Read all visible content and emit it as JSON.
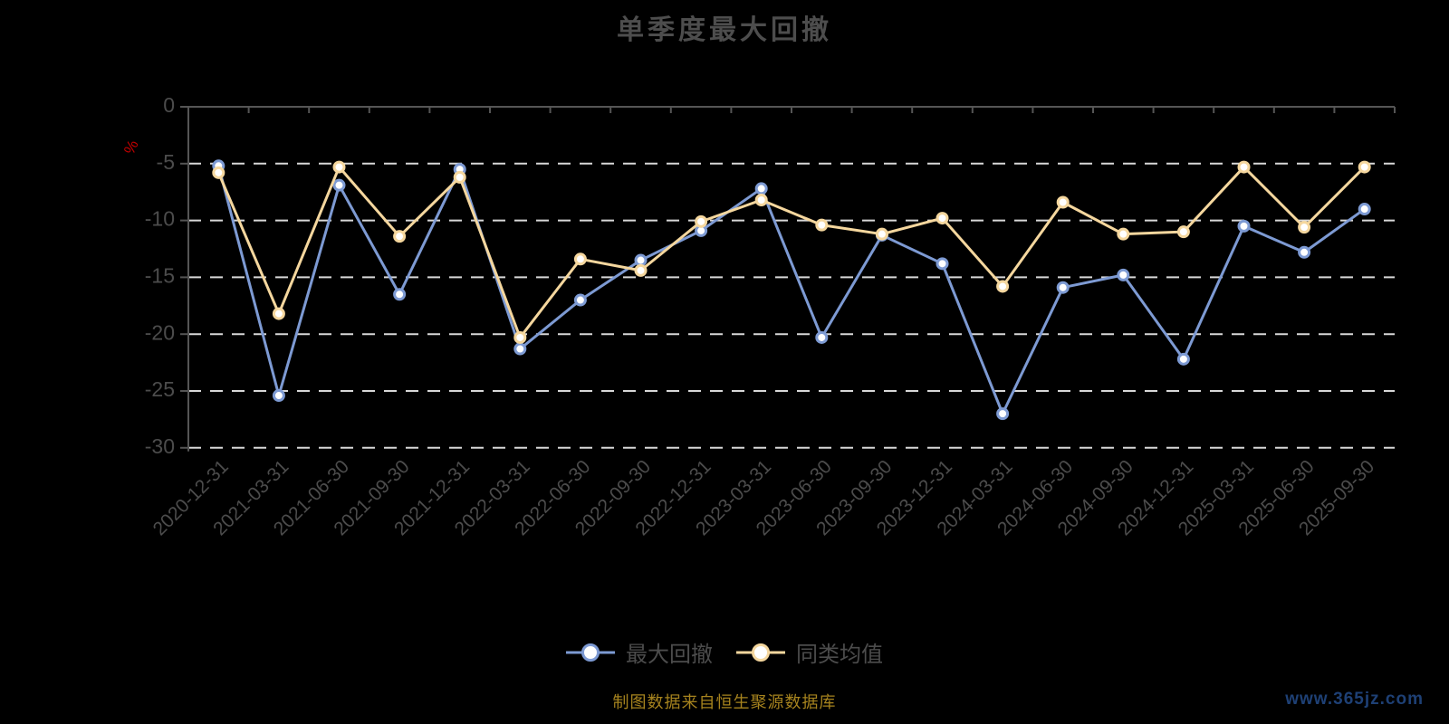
{
  "title": "单季度最大回撤",
  "legend": {
    "items": [
      {
        "label": "最大回撤",
        "color": "#7d9ad3"
      },
      {
        "label": "同类均值",
        "color": "#f5d79e"
      }
    ]
  },
  "footer": {
    "source_note": "制图数据来自恒生聚源数据库",
    "watermark": "www.365jz.com"
  },
  "colors": {
    "background": "#000000",
    "grid_line": "#d8d8d8",
    "axis_line": "#555555",
    "axis_text": "#4c4c4c",
    "title_text": "#4d4d4d",
    "unit_label": "#c00000",
    "marker_fill": "#ffffff",
    "source_note": "#a6831e",
    "watermark": "#1e4075"
  },
  "chart_data": {
    "type": "line",
    "title": "单季度最大回撤",
    "categories": [
      "2020-12-31",
      "2021-03-31",
      "2021-06-30",
      "2021-09-30",
      "2021-12-31",
      "2022-03-31",
      "2022-06-30",
      "2022-09-30",
      "2022-12-31",
      "2023-03-31",
      "2023-06-30",
      "2023-09-30",
      "2023-12-31",
      "2024-03-31",
      "2024-06-30",
      "2024-09-30",
      "2024-12-31",
      "2025-03-31",
      "2025-06-30",
      "2025-09-30"
    ],
    "series": [
      {
        "name": "最大回撤",
        "color": "#7d9ad3",
        "values": [
          -5.2,
          -25.4,
          -6.9,
          -16.5,
          -5.5,
          -21.3,
          -17.0,
          -13.5,
          -10.9,
          -7.2,
          -20.3,
          -11.3,
          -13.8,
          -27.0,
          -15.9,
          -14.8,
          -22.2,
          -10.5,
          -12.8,
          -9.0
        ]
      },
      {
        "name": "同类均值",
        "color": "#f5d79e",
        "values": [
          -5.8,
          -18.2,
          -5.3,
          -11.4,
          -6.2,
          -20.3,
          -13.4,
          -14.4,
          -10.1,
          -8.2,
          -10.4,
          -11.2,
          -9.8,
          -15.8,
          -8.4,
          -11.2,
          -11.0,
          -5.3,
          -10.6,
          -5.3
        ]
      }
    ],
    "xlabel": "",
    "ylabel": "%",
    "ylim": [
      -30,
      0
    ],
    "y_ticks": [
      0,
      -5,
      -10,
      -15,
      -20,
      -25,
      -30
    ],
    "grid": "horizontal-dashed",
    "x_axis_position": "zero-line-top",
    "x_label_rotate": 45,
    "legend_position": "bottom",
    "marker": "circle-white-fill"
  }
}
